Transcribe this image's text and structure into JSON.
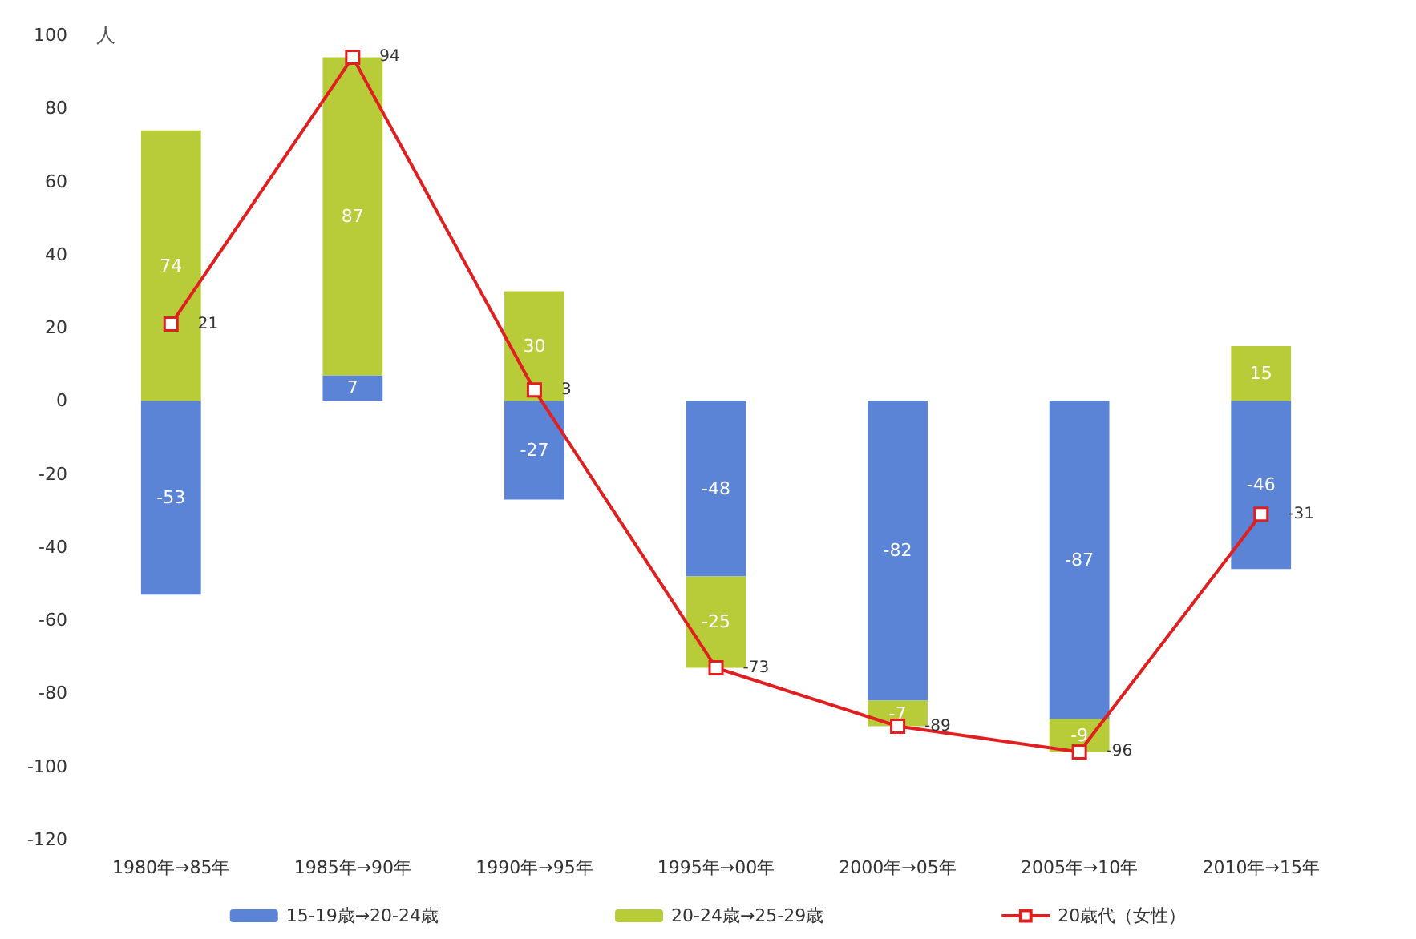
{
  "chart_data": {
    "type": "bar",
    "ylabel": "人",
    "categories": [
      "1980年→85年",
      "1985年→90年",
      "1990年→95年",
      "1995年→00年",
      "2000年→05年",
      "2005年→10年",
      "2010年→15年"
    ],
    "series": [
      {
        "name": "15-19歳→20-24歳",
        "color": "#5b84d6",
        "values": [
          -53,
          7,
          -27,
          -48,
          -82,
          -87,
          -46
        ]
      },
      {
        "name": "20-24歳→25-29歳",
        "color": "#b8cc3a",
        "values": [
          74,
          87,
          30,
          -25,
          -7,
          -9,
          15
        ]
      },
      {
        "name": "20歳代（女性）",
        "type": "line",
        "color": "#e02020",
        "marker": "square",
        "values": [
          21,
          94,
          3,
          -73,
          -89,
          -96,
          -31
        ]
      }
    ],
    "stacked": true,
    "data_labels": true,
    "ylim": [
      -120,
      100
    ],
    "yticks": [
      -120,
      -100,
      -80,
      -60,
      -40,
      -20,
      0,
      20,
      40,
      60,
      80,
      100
    ],
    "grid": false,
    "legend": "bottom"
  }
}
